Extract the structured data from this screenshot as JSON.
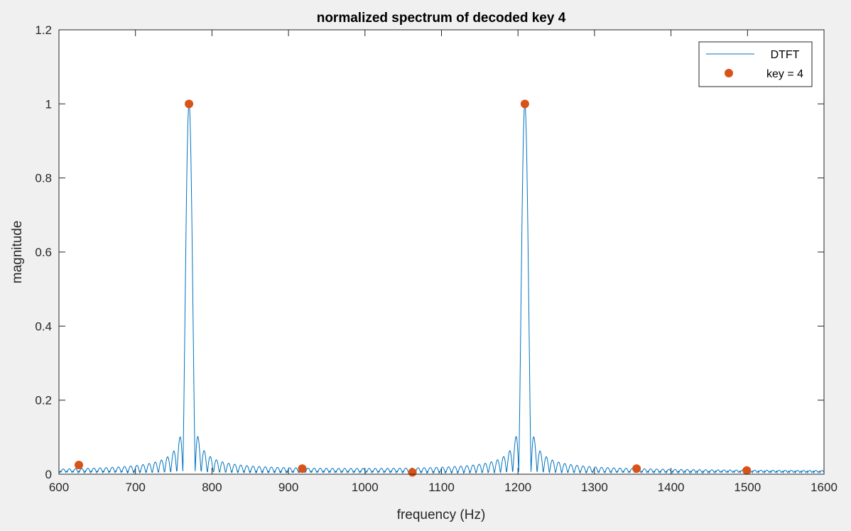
{
  "chart_data": {
    "type": "line",
    "title": "normalized spectrum of decoded key 4",
    "xlabel": "frequency (Hz)",
    "ylabel": "magnitude",
    "xlim": [
      600,
      1600
    ],
    "ylim": [
      0,
      1.2
    ],
    "xticks": [
      600,
      700,
      800,
      900,
      1000,
      1100,
      1200,
      1300,
      1400,
      1500,
      1600
    ],
    "yticks": [
      0,
      0.2,
      0.4,
      0.6,
      0.8,
      1,
      1.2
    ],
    "xtick_labels": [
      "600",
      "700",
      "800",
      "900",
      "1000",
      "1100",
      "1200",
      "1300",
      "1400",
      "1500",
      "1600"
    ],
    "ytick_labels": [
      "0",
      "0.2",
      "0.4",
      "0.6",
      "0.8",
      "1",
      "1.2"
    ],
    "grid": false,
    "legend_position": "top-right",
    "series": [
      {
        "name": "DTFT",
        "style": "line",
        "color": "#0072BD",
        "peaks": [
          {
            "x": 770,
            "y": 1.0
          },
          {
            "x": 1209,
            "y": 1.0
          }
        ],
        "sidelobe_spacing_hz": 8,
        "notes_side_lobes": [
          {
            "x": 762,
            "y": 0.22
          },
          {
            "x": 778,
            "y": 0.21
          },
          {
            "x": 1201,
            "y": 0.21
          },
          {
            "x": 1217,
            "y": 0.215
          }
        ],
        "floor": 0.01
      },
      {
        "name": "key = 4",
        "style": "markers",
        "color": "#D95319",
        "x": [
          626,
          770,
          918,
          1062,
          1209,
          1355,
          1499
        ],
        "y": [
          0.025,
          1.0,
          0.015,
          0.005,
          1.0,
          0.015,
          0.01
        ]
      }
    ]
  }
}
